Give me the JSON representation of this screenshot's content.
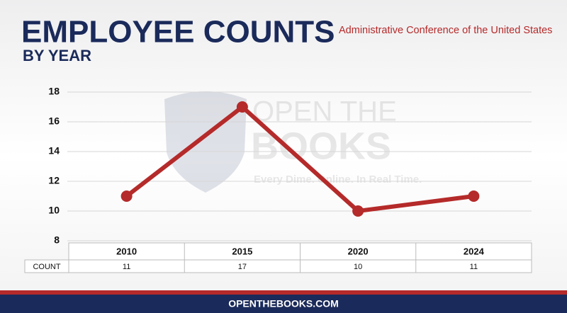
{
  "chart_data": {
    "type": "line",
    "title": "EMPLOYEE COUNTS",
    "subtitle": "BY YEAR",
    "agency": "Administrative Conference of the United States",
    "watermark": [
      "OPEN THE",
      "BOOKS",
      "Every Dime. Online. In Real Time."
    ],
    "categories": [
      "2010",
      "2015",
      "2020",
      "2024"
    ],
    "values": [
      11,
      17,
      10,
      11
    ],
    "color": "#b52a2a",
    "ylim": [
      8,
      18
    ],
    "yticks": [
      8,
      10,
      12,
      14,
      16,
      18
    ],
    "grid": true,
    "table_row_label": "COUNT",
    "footer": "OPENTHEBOOKS.COM"
  }
}
